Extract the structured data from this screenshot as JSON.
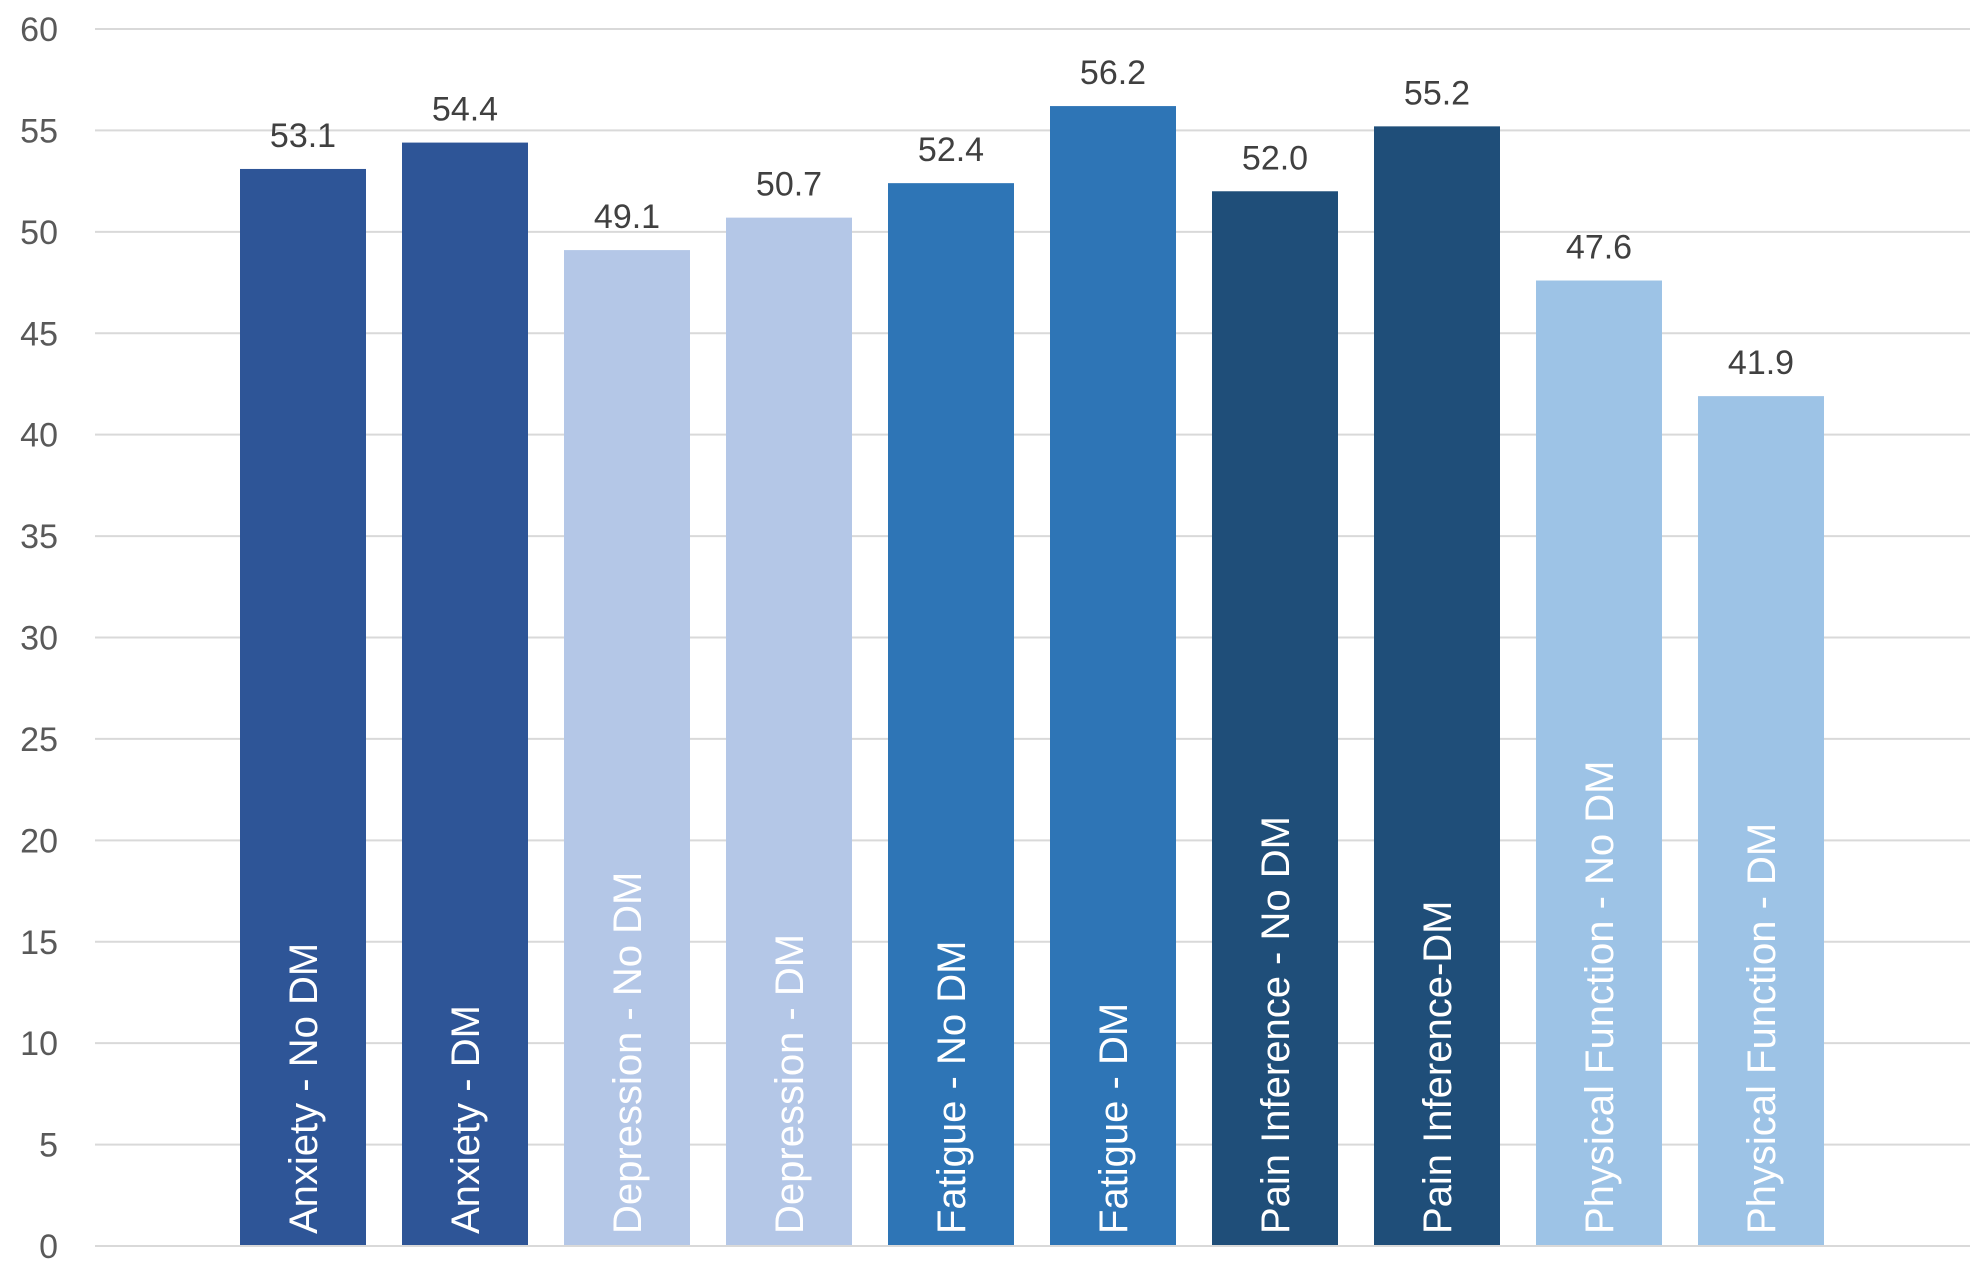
{
  "chart_data": {
    "type": "bar",
    "title": "",
    "xlabel": "",
    "ylabel": "",
    "ylim": [
      0,
      60
    ],
    "yticks": [
      0,
      5,
      10,
      15,
      20,
      25,
      30,
      35,
      40,
      45,
      50,
      55,
      60
    ],
    "grid": true,
    "legend": "none",
    "categories": [
      "Anxiety - No DM",
      "Anxiety - DM",
      "Depression - No DM",
      "Depression - DM",
      "Fatigue - No DM",
      "Fatigue - DM",
      "Pain Inference - No DM",
      "Pain Inference-DM",
      "Physical Function - No DM",
      "Physical Function - DM"
    ],
    "values": [
      53.1,
      54.4,
      49.1,
      50.7,
      52.4,
      56.2,
      52.0,
      55.2,
      47.6,
      41.9
    ],
    "value_labels": [
      "53.1",
      "54.4",
      "49.1",
      "50.7",
      "52.4",
      "56.2",
      "52.0",
      "55.2",
      "47.6",
      "41.9"
    ],
    "colors": [
      "#2e5597",
      "#2e5597",
      "#b4c7e7",
      "#b4c7e7",
      "#2e75b6",
      "#2e75b6",
      "#1f4e79",
      "#1f4e79",
      "#9dc3e6",
      "#9dc3e6"
    ]
  }
}
